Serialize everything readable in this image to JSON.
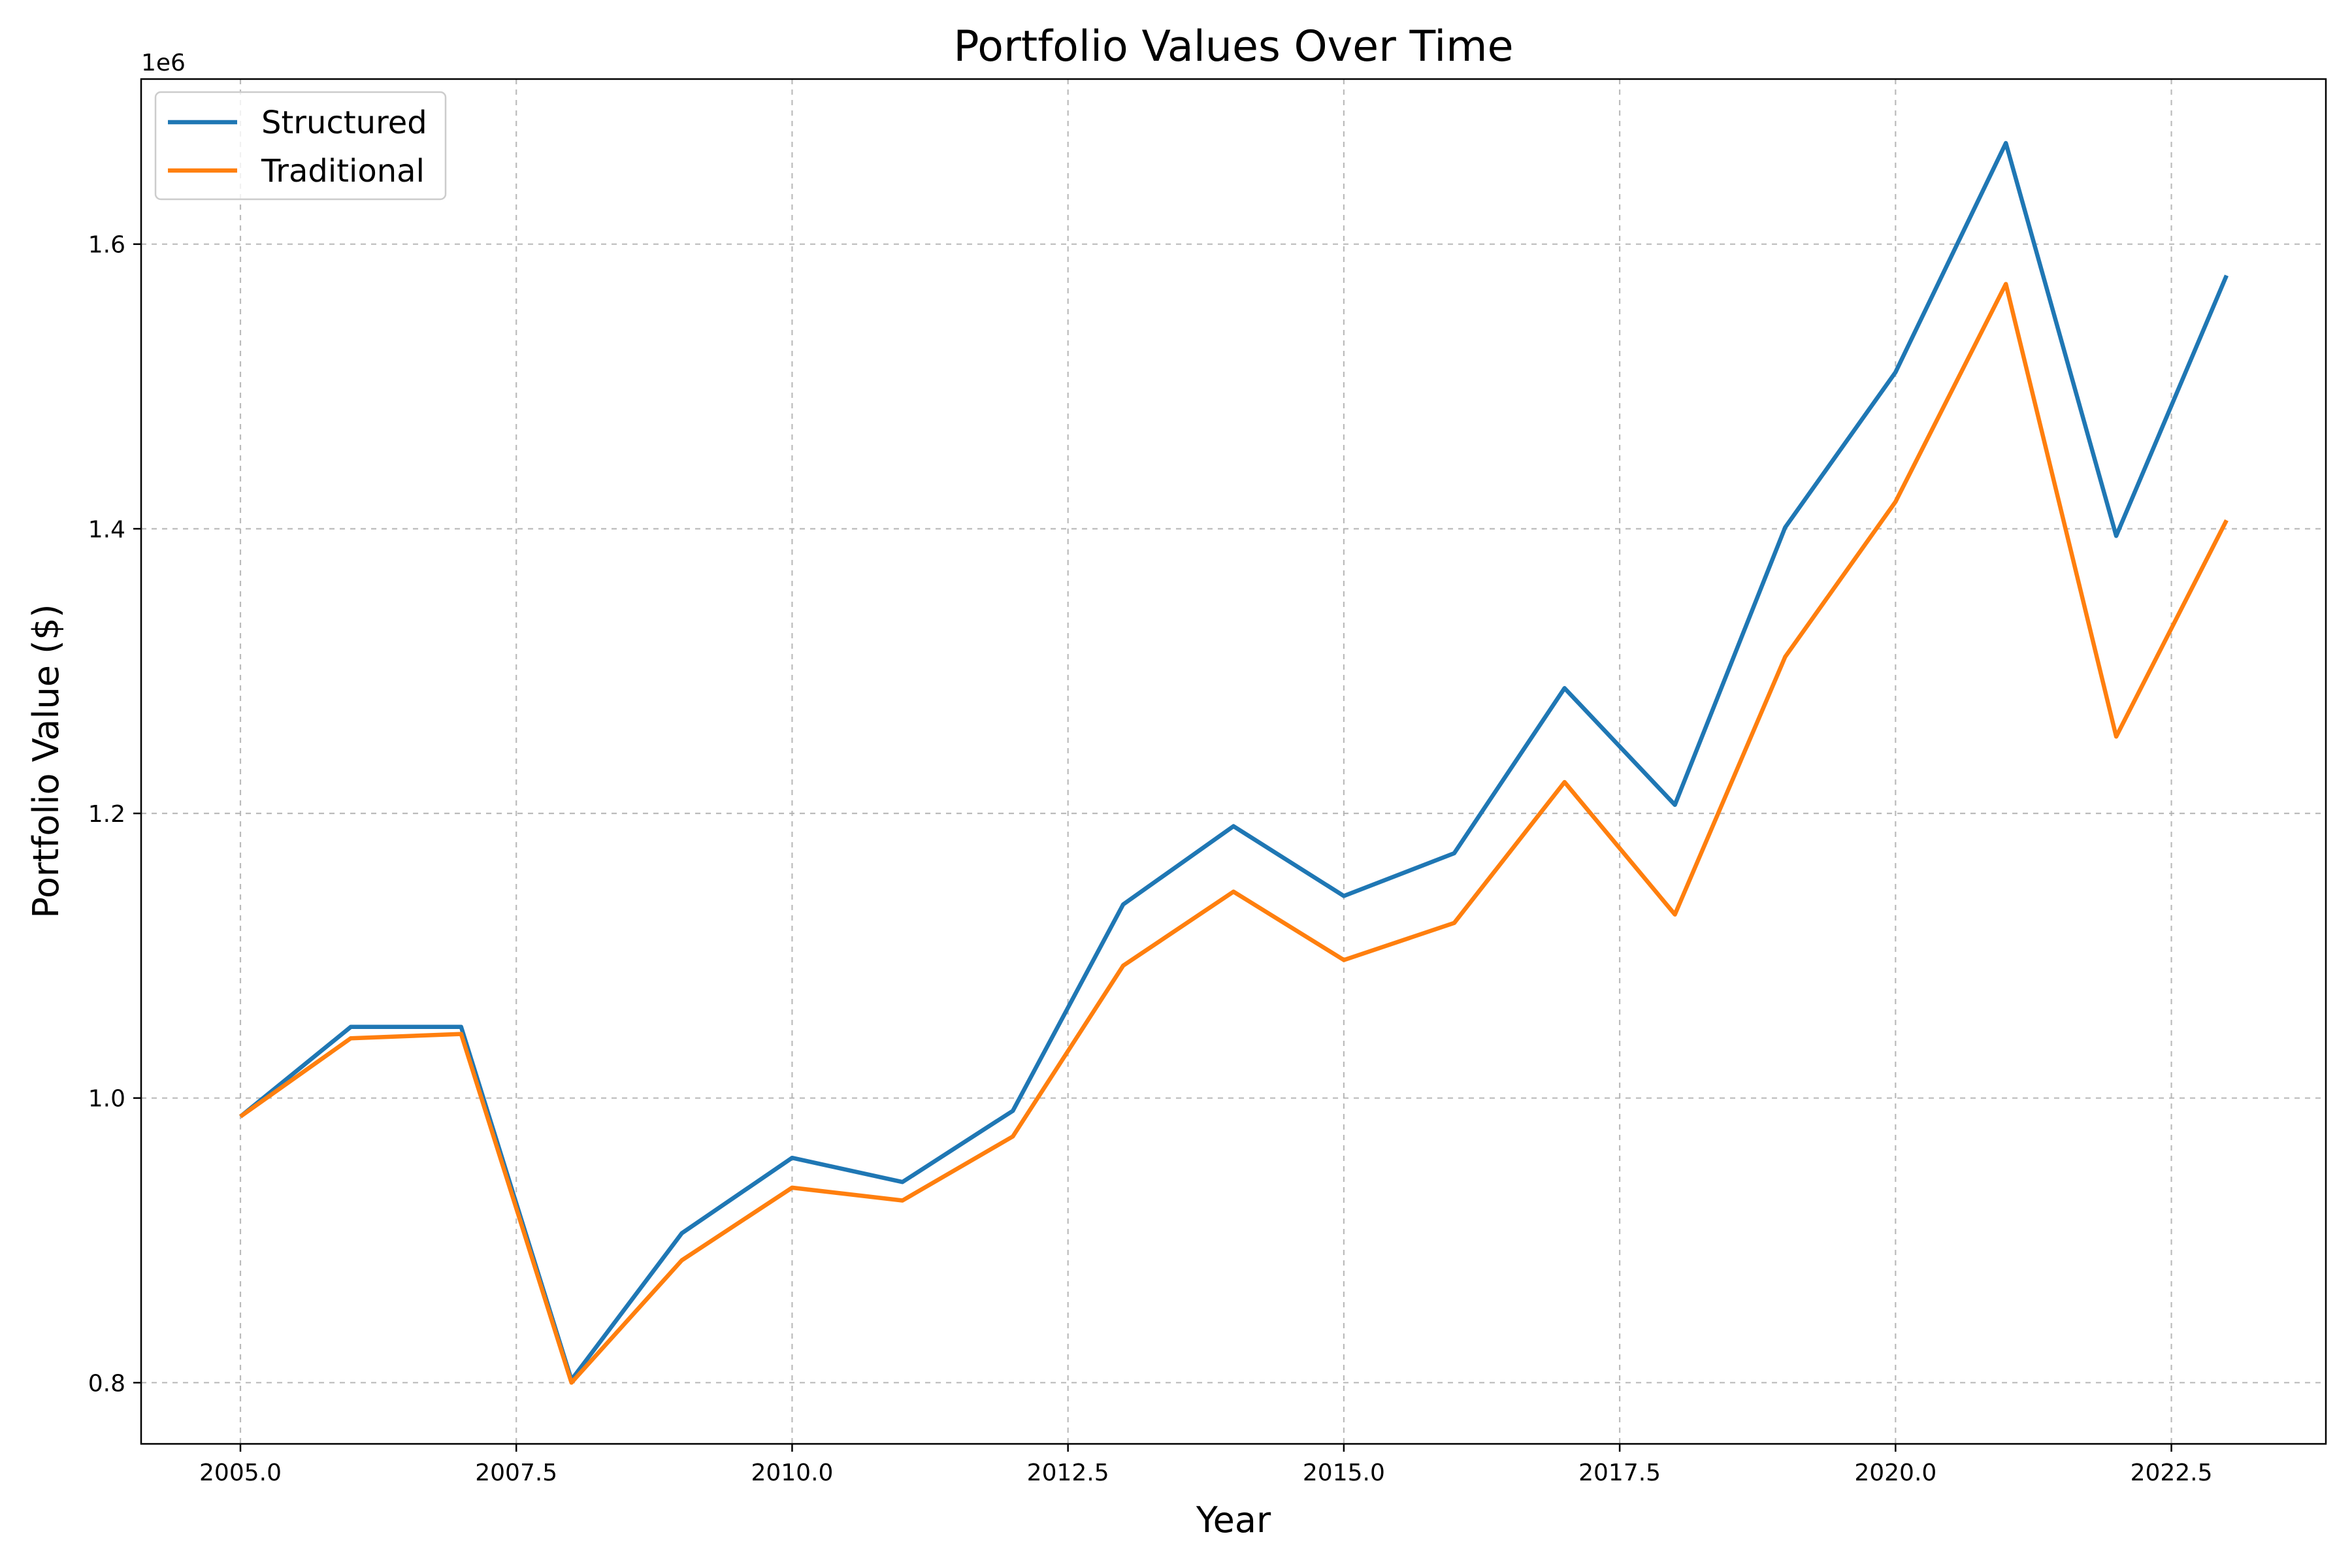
{
  "chart_data": {
    "type": "line",
    "title": "Portfolio Values Over Time",
    "xlabel": "Year",
    "ylabel": "Portfolio Value ($)",
    "y_offset_label": "1e6",
    "x": [
      2005,
      2006,
      2007,
      2008,
      2009,
      2010,
      2011,
      2012,
      2013,
      2014,
      2015,
      2016,
      2017,
      2018,
      2019,
      2020,
      2021,
      2022,
      2023
    ],
    "series": [
      {
        "name": "Structured",
        "color": "#1f77b4",
        "values": [
          0.987,
          1.05,
          1.05,
          0.802,
          0.905,
          0.958,
          0.941,
          0.991,
          1.136,
          1.191,
          1.142,
          1.172,
          1.288,
          1.206,
          1.401,
          1.51,
          1.671,
          1.395,
          1.578
        ]
      },
      {
        "name": "Traditional",
        "color": "#ff7f0e",
        "values": [
          0.987,
          1.042,
          1.045,
          0.8,
          0.886,
          0.937,
          0.928,
          0.973,
          1.093,
          1.145,
          1.097,
          1.123,
          1.222,
          1.129,
          1.31,
          1.419,
          1.572,
          1.254,
          1.406
        ]
      }
    ],
    "xlim": [
      2004.1,
      2023.9
    ],
    "ylim": [
      0.757,
      1.716
    ],
    "x_ticks": [
      2005.0,
      2007.5,
      2010.0,
      2012.5,
      2015.0,
      2017.5,
      2020.0,
      2022.5
    ],
    "x_tick_labels": [
      "2005.0",
      "2007.5",
      "2010.0",
      "2012.5",
      "2015.0",
      "2017.5",
      "2020.0",
      "2022.5"
    ],
    "y_ticks": [
      0.8,
      1.0,
      1.2,
      1.4,
      1.6
    ],
    "y_tick_labels": [
      "0.8",
      "1.0",
      "1.2",
      "1.4",
      "1.6"
    ],
    "grid": true,
    "legend_position": "top-left"
  }
}
